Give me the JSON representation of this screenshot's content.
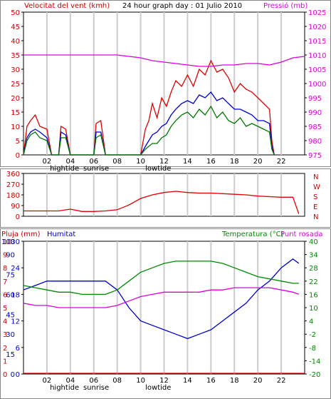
{
  "chart_data": [
    {
      "type": "line",
      "title": "24 hour graph day : 01 Julio 2010",
      "left_label": "Velocitat del vent (kmh)",
      "right_label": "Pressió (mb)",
      "x_ticks": [
        "02",
        "04",
        "06",
        "08",
        "10",
        "12",
        "14",
        "16",
        "18",
        "20",
        "22"
      ],
      "x_annotations": [
        "hightide",
        "sunrise",
        "lowtide"
      ],
      "y_left_ticks": [
        0,
        5,
        10,
        15,
        20,
        25,
        30,
        35,
        40,
        45,
        50
      ],
      "y_right_ticks": [
        975,
        980,
        985,
        990,
        995,
        1000,
        1005,
        1010,
        1015,
        1020,
        1025
      ],
      "series": [
        {
          "color": "#e00000",
          "x": [
            0,
            0.3,
            0.6,
            1.0,
            1.4,
            2.0,
            2.4,
            3.0,
            3.2,
            3.6,
            4.0,
            6.0,
            6.2,
            6.6,
            7.0,
            10.0,
            10.4,
            10.7,
            11.0,
            11.4,
            11.8,
            12.2,
            12.6,
            13.0,
            13.5,
            14.0,
            14.5,
            15.0,
            15.5,
            16.0,
            16.5,
            17.0,
            17.5,
            18.0,
            18.5,
            19.0,
            19.5,
            20.0,
            20.5,
            21.0,
            21.2,
            21.4
          ],
          "y": [
            0,
            10,
            12,
            14,
            10,
            9,
            0,
            0,
            10,
            9,
            0,
            0,
            11,
            12,
            0,
            0,
            9,
            12,
            18,
            13,
            20,
            17,
            22,
            26,
            24,
            28,
            24,
            30,
            28,
            33,
            29,
            30,
            27,
            22,
            25,
            23,
            22,
            20,
            18,
            16,
            5,
            0
          ]
        },
        {
          "color": "#0000cc",
          "x": [
            0,
            0.3,
            0.6,
            1.0,
            1.4,
            2.0,
            2.4,
            3.0,
            3.2,
            3.6,
            4.0,
            6.0,
            6.2,
            6.6,
            7.0,
            10.0,
            10.4,
            10.7,
            11.0,
            11.4,
            11.8,
            12.2,
            12.6,
            13.0,
            13.5,
            14.0,
            14.5,
            15.0,
            15.5,
            16.0,
            16.5,
            17.0,
            17.5,
            18.0,
            18.5,
            19.0,
            19.5,
            20.0,
            20.5,
            21.0,
            21.2,
            21.4
          ],
          "y": [
            0,
            6,
            8,
            9,
            8,
            6,
            0,
            0,
            8,
            7,
            0,
            0,
            8,
            8,
            0,
            0,
            3,
            5,
            7,
            8,
            10,
            11,
            14,
            16,
            18,
            19,
            18,
            21,
            20,
            22,
            19,
            20,
            18,
            16,
            16,
            15,
            14,
            12,
            12,
            11,
            3,
            0
          ]
        },
        {
          "color": "#007700",
          "x": [
            0,
            0.3,
            0.6,
            1.0,
            1.4,
            2.0,
            2.4,
            3.0,
            3.2,
            3.6,
            4.0,
            6.0,
            6.2,
            6.6,
            7.0,
            10.0,
            10.4,
            10.7,
            11.0,
            11.4,
            11.8,
            12.2,
            12.6,
            13.0,
            13.5,
            14.0,
            14.5,
            15.0,
            15.5,
            16.0,
            16.5,
            17.0,
            17.5,
            18.0,
            18.5,
            19.0,
            19.5,
            20.0,
            20.5,
            21.0,
            21.2,
            21.4
          ],
          "y": [
            0,
            5,
            7,
            8,
            6,
            5,
            0,
            0,
            6,
            6,
            0,
            0,
            6,
            7,
            0,
            0,
            2,
            3,
            4,
            4,
            6,
            7,
            10,
            12,
            14,
            15,
            13,
            16,
            14,
            17,
            13,
            15,
            12,
            11,
            13,
            10,
            11,
            10,
            9,
            8,
            2,
            0
          ]
        },
        {
          "color": "#dd00dd",
          "axis": "right",
          "x": [
            0,
            2,
            4,
            6,
            8,
            9,
            10,
            11,
            12,
            13,
            14,
            15,
            16,
            17,
            18,
            19,
            20,
            21,
            22,
            23,
            24
          ],
          "y": [
            1010,
            1010,
            1010,
            1010,
            1010,
            1009.5,
            1009,
            1008,
            1007.5,
            1007,
            1006.5,
            1006,
            1006,
            1006.5,
            1006.5,
            1007,
            1007,
            1006.5,
            1007.5,
            1009,
            1009.5
          ]
        }
      ]
    },
    {
      "type": "line",
      "left_label": "",
      "right_labels": [
        "N",
        "W",
        "S",
        "E",
        "N"
      ],
      "y_left_ticks": [
        0,
        90,
        180,
        270,
        360
      ],
      "series": [
        {
          "color": "#e00000",
          "x": [
            0,
            1,
            2,
            3,
            4,
            5,
            6,
            7,
            8,
            9,
            10,
            11,
            12,
            13,
            14,
            15,
            16,
            17,
            18,
            19,
            20,
            21,
            22,
            23,
            23.5
          ],
          "y": [
            45,
            45,
            45,
            45,
            60,
            40,
            40,
            45,
            55,
            95,
            150,
            180,
            200,
            210,
            200,
            195,
            195,
            190,
            185,
            180,
            170,
            165,
            160,
            160,
            20
          ]
        }
      ]
    },
    {
      "type": "line",
      "left_label": "Pluja (mm)",
      "left2_label": "Humitat",
      "right_label": "Temperatura (°C)",
      "right2_label": "Punt rosada",
      "y_rain_ticks": [
        0,
        1,
        2,
        3,
        4,
        5,
        6,
        7,
        8,
        9,
        10
      ],
      "y_hum_ticks": [
        0,
        15,
        30,
        45,
        60,
        75,
        90,
        100
      ],
      "y_hum2_ticks": [
        0,
        6,
        12,
        18,
        24,
        30
      ],
      "y_temp_ticks": [
        -20,
        -14,
        -8,
        -2,
        4,
        10,
        16,
        22,
        28,
        34,
        40
      ],
      "series": [
        {
          "name": "Humitat",
          "color": "#0000cc",
          "x": [
            0,
            1,
            2,
            3,
            4,
            5,
            6,
            7,
            8,
            9,
            10,
            11,
            12,
            13,
            14,
            15,
            16,
            17,
            18,
            19,
            20,
            21,
            22,
            23,
            23.5
          ],
          "y": [
            19,
            20,
            21,
            21,
            21,
            21,
            21,
            21,
            19,
            15,
            12,
            11,
            10,
            9,
            8,
            9,
            10,
            12,
            14,
            16,
            19,
            21,
            24,
            26,
            25
          ]
        },
        {
          "name": "Temperatura",
          "color": "#008800",
          "x": [
            0,
            1,
            2,
            3,
            4,
            5,
            6,
            7,
            8,
            9,
            10,
            11,
            12,
            13,
            14,
            15,
            16,
            17,
            18,
            19,
            20,
            21,
            22,
            23,
            23.5
          ],
          "y": [
            20,
            19,
            18,
            17,
            17,
            16,
            16,
            16,
            18,
            22,
            26,
            28,
            30,
            31,
            31,
            31,
            31,
            30,
            28,
            26,
            24,
            23,
            22,
            21,
            21
          ]
        },
        {
          "name": "Punt rosada",
          "color": "#dd00dd",
          "x": [
            0,
            1,
            2,
            3,
            4,
            5,
            6,
            7,
            8,
            9,
            10,
            11,
            12,
            13,
            14,
            15,
            16,
            17,
            18,
            19,
            20,
            21,
            22,
            23,
            23.5
          ],
          "y": [
            12,
            11,
            11,
            10,
            10,
            10,
            10,
            10,
            11,
            13,
            15,
            16,
            17,
            17,
            17,
            17,
            18,
            18,
            19,
            19,
            19,
            19,
            18,
            17,
            16
          ]
        },
        {
          "name": "Pluja",
          "color": "#e00000",
          "x": [
            0,
            24
          ],
          "y": [
            0,
            0
          ]
        }
      ]
    }
  ]
}
